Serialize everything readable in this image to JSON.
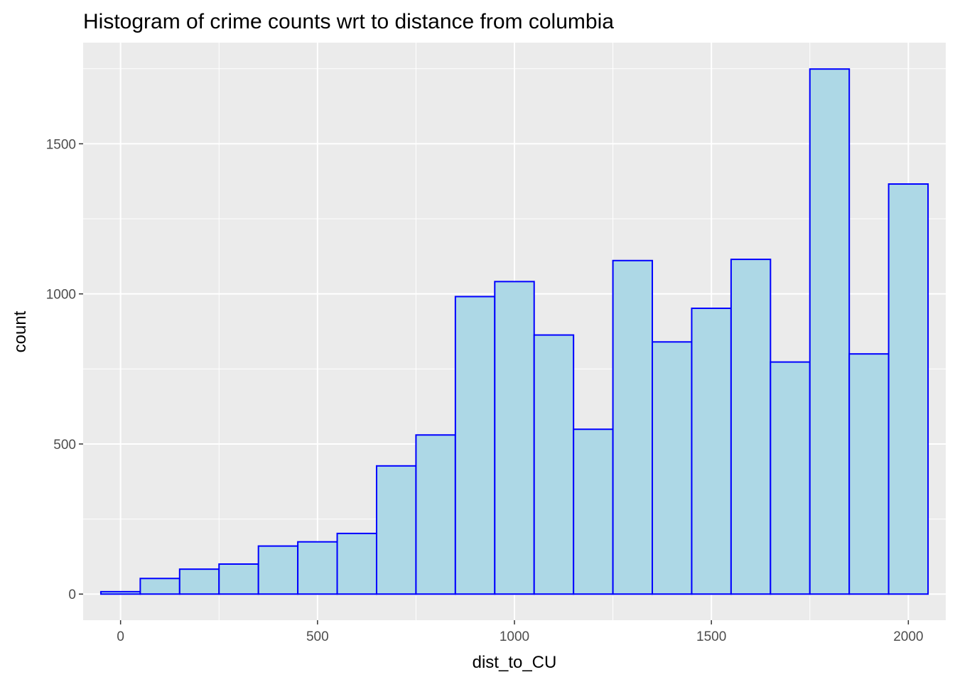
{
  "chart_data": {
    "type": "histogram",
    "title": "Histogram of crime counts wrt to distance from columbia",
    "xlabel": "dist_to_CU",
    "ylabel": "count",
    "xlim": [
      -95,
      2095
    ],
    "ylim": [
      -87,
      1837
    ],
    "x_ticks": [
      0,
      500,
      1000,
      1500,
      2000
    ],
    "x_tick_labels": [
      "0",
      "500",
      "1000",
      "1500",
      "2000"
    ],
    "y_ticks": [
      0,
      500,
      1000,
      1500
    ],
    "y_tick_labels": [
      "0",
      "500",
      "1000",
      "1500"
    ],
    "bin_width": 100,
    "bins": [
      {
        "x0": -50,
        "x1": 50,
        "count": 8
      },
      {
        "x0": 50,
        "x1": 150,
        "count": 52
      },
      {
        "x0": 150,
        "x1": 250,
        "count": 83
      },
      {
        "x0": 250,
        "x1": 350,
        "count": 100
      },
      {
        "x0": 350,
        "x1": 450,
        "count": 160
      },
      {
        "x0": 450,
        "x1": 550,
        "count": 174
      },
      {
        "x0": 550,
        "x1": 650,
        "count": 202
      },
      {
        "x0": 650,
        "x1": 750,
        "count": 427
      },
      {
        "x0": 750,
        "x1": 850,
        "count": 530
      },
      {
        "x0": 850,
        "x1": 950,
        "count": 991
      },
      {
        "x0": 950,
        "x1": 1050,
        "count": 1041
      },
      {
        "x0": 1050,
        "x1": 1150,
        "count": 863
      },
      {
        "x0": 1150,
        "x1": 1250,
        "count": 549
      },
      {
        "x0": 1250,
        "x1": 1350,
        "count": 1111
      },
      {
        "x0": 1350,
        "x1": 1450,
        "count": 840
      },
      {
        "x0": 1450,
        "x1": 1550,
        "count": 952
      },
      {
        "x0": 1550,
        "x1": 1650,
        "count": 1115
      },
      {
        "x0": 1650,
        "x1": 1750,
        "count": 773
      },
      {
        "x0": 1750,
        "x1": 1850,
        "count": 1749
      },
      {
        "x0": 1850,
        "x1": 1950,
        "count": 800
      },
      {
        "x0": 1950,
        "x1": 2050,
        "count": 1366
      }
    ],
    "colors": {
      "fill": "#ADD8E6",
      "outline": "#0000FF",
      "panel_background": "#EBEBEB",
      "grid": "#FFFFFF"
    },
    "grid": true,
    "legend": "none"
  }
}
